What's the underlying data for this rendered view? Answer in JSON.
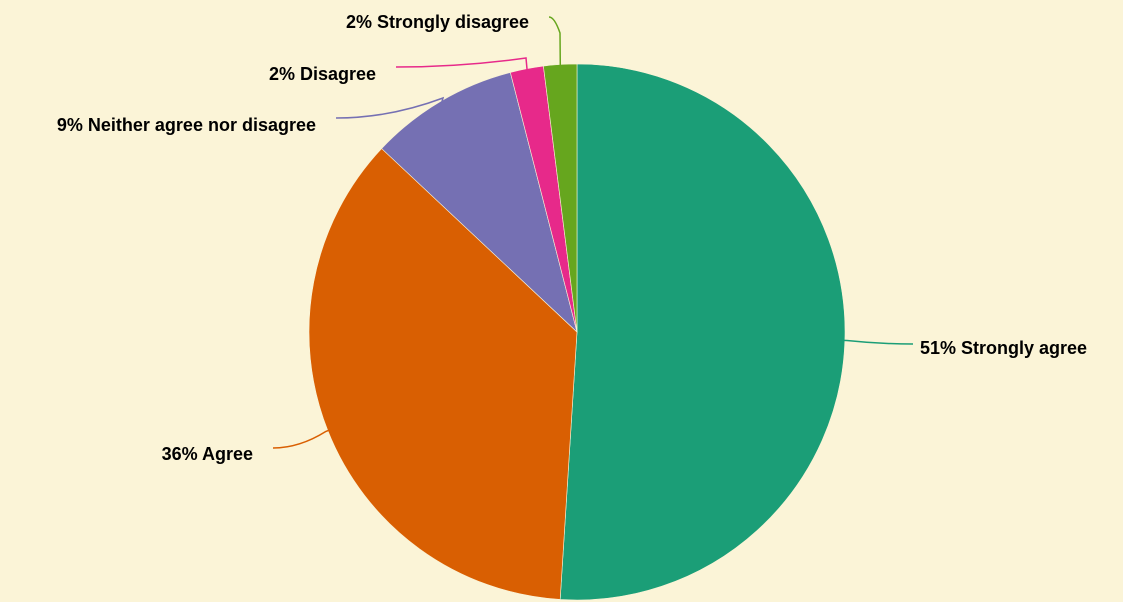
{
  "background": "#fbf4d7",
  "chart_data": {
    "type": "pie",
    "title": "",
    "slices": [
      {
        "category": "Strongly agree",
        "value": 51,
        "label": "51% Strongly agree",
        "color": "#1b9e77"
      },
      {
        "category": "Agree",
        "value": 36,
        "label": "36% Agree",
        "color": "#d95f02"
      },
      {
        "category": "Neither agree nor disagree",
        "value": 9,
        "label": "9% Neither agree nor disagree",
        "color": "#7570b3"
      },
      {
        "category": "Disagree",
        "value": 2,
        "label": "2% Disagree",
        "color": "#e7298a"
      },
      {
        "category": "Strongly disagree",
        "value": 2,
        "label": "2% Strongly disagree",
        "color": "#66a61e"
      }
    ],
    "direction": "clockwise",
    "start": "top",
    "legend": "none"
  }
}
